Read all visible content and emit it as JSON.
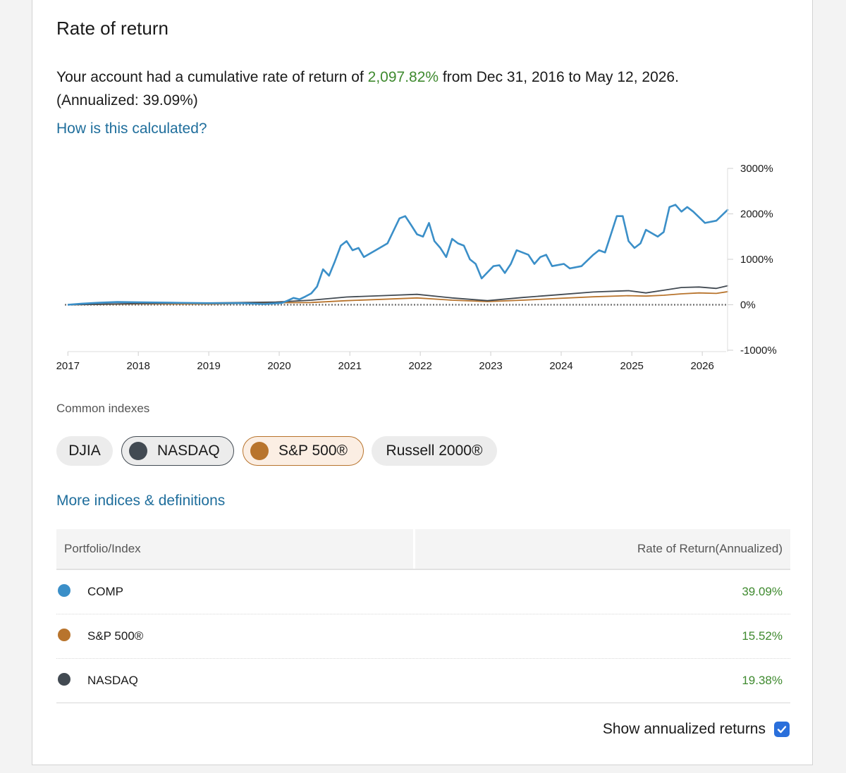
{
  "title": "Rate of return",
  "summary": {
    "prefix": "Your account had a cumulative rate of return of ",
    "value": "2,097.82%",
    "middle": " from Dec 31, 2016 to May 12, 2026.",
    "annualized": "(Annualized: 39.09%)"
  },
  "links": {
    "calculated": "How is this calculated?",
    "more_indices": "More indices & definitions"
  },
  "chart_data": {
    "type": "line",
    "x_start": "2016-12-31",
    "x_end": "2026-05-12",
    "xticks": [
      "2017",
      "2018",
      "2019",
      "2020",
      "2021",
      "2022",
      "2023",
      "2024",
      "2025",
      "2026"
    ],
    "yticks": [
      "3000%",
      "2000%",
      "1000%",
      "0%",
      "-1000%"
    ],
    "ylim": [
      -1000,
      3000
    ],
    "zero_line": "dotted",
    "series": [
      {
        "name": "COMP",
        "color": "#3b8fc8",
        "points": [
          [
            "2016-12-31",
            0
          ],
          [
            "2017-03",
            25
          ],
          [
            "2017-06",
            45
          ],
          [
            "2017-09",
            60
          ],
          [
            "2018-01",
            55
          ],
          [
            "2018-06",
            45
          ],
          [
            "2018-12",
            35
          ],
          [
            "2019-06",
            35
          ],
          [
            "2019-10",
            15
          ],
          [
            "2020-01",
            40
          ],
          [
            "2020-02",
            95
          ],
          [
            "2020-03",
            150
          ],
          [
            "2020-04",
            120
          ],
          [
            "2020-05",
            180
          ],
          [
            "2020-06",
            250
          ],
          [
            "2020-07",
            400
          ],
          [
            "2020-08",
            780
          ],
          [
            "2020-09",
            640
          ],
          [
            "2020-10",
            950
          ],
          [
            "2020-11",
            1300
          ],
          [
            "2020-12",
            1400
          ],
          [
            "2021-01",
            1200
          ],
          [
            "2021-02",
            1250
          ],
          [
            "2021-03",
            1050
          ],
          [
            "2021-05",
            1200
          ],
          [
            "2021-07",
            1350
          ],
          [
            "2021-09",
            1900
          ],
          [
            "2021-10",
            1950
          ],
          [
            "2021-11",
            1750
          ],
          [
            "2021-12",
            1550
          ],
          [
            "2022-01",
            1500
          ],
          [
            "2022-02",
            1800
          ],
          [
            "2022-03",
            1400
          ],
          [
            "2022-04",
            1250
          ],
          [
            "2022-05",
            1050
          ],
          [
            "2022-06",
            1450
          ],
          [
            "2022-07",
            1350
          ],
          [
            "2022-08",
            1300
          ],
          [
            "2022-09",
            1000
          ],
          [
            "2022-10",
            900
          ],
          [
            "2022-11",
            580
          ],
          [
            "2023-01",
            850
          ],
          [
            "2023-02",
            870
          ],
          [
            "2023-03",
            700
          ],
          [
            "2023-04",
            900
          ],
          [
            "2023-05",
            1200
          ],
          [
            "2023-07",
            1100
          ],
          [
            "2023-08",
            900
          ],
          [
            "2023-09",
            1050
          ],
          [
            "2023-10",
            1100
          ],
          [
            "2023-11",
            850
          ],
          [
            "2024-01",
            900
          ],
          [
            "2024-02",
            800
          ],
          [
            "2024-04",
            850
          ],
          [
            "2024-06",
            1100
          ],
          [
            "2024-07",
            1200
          ],
          [
            "2024-08",
            1150
          ],
          [
            "2024-09",
            1550
          ],
          [
            "2024-10",
            1950
          ],
          [
            "2024-11",
            1950
          ],
          [
            "2024-12",
            1400
          ],
          [
            "2025-01",
            1250
          ],
          [
            "2025-02",
            1350
          ],
          [
            "2025-03",
            1650
          ],
          [
            "2025-05",
            1500
          ],
          [
            "2025-06",
            1600
          ],
          [
            "2025-07",
            2150
          ],
          [
            "2025-08",
            2200
          ],
          [
            "2025-09",
            2050
          ],
          [
            "2025-10",
            2150
          ],
          [
            "2025-11",
            2050
          ],
          [
            "2026-01",
            1800
          ],
          [
            "2026-03",
            1850
          ],
          [
            "2026-05",
            2100
          ]
        ]
      },
      {
        "name": "NASDAQ",
        "color": "#424a52",
        "points": [
          [
            "2016-12-31",
            0
          ],
          [
            "2018-01",
            30
          ],
          [
            "2019-01",
            40
          ],
          [
            "2019-12",
            60
          ],
          [
            "2020-06",
            100
          ],
          [
            "2020-12",
            170
          ],
          [
            "2021-06",
            200
          ],
          [
            "2021-12",
            230
          ],
          [
            "2022-06",
            150
          ],
          [
            "2022-12",
            90
          ],
          [
            "2023-06",
            160
          ],
          [
            "2023-12",
            220
          ],
          [
            "2024-06",
            280
          ],
          [
            "2024-12",
            310
          ],
          [
            "2025-03",
            260
          ],
          [
            "2025-06",
            320
          ],
          [
            "2025-09",
            380
          ],
          [
            "2025-12",
            390
          ],
          [
            "2026-03",
            360
          ],
          [
            "2026-05",
            420
          ]
        ]
      },
      {
        "name": "S&P 500®",
        "color": "#b8742d",
        "points": [
          [
            "2016-12-31",
            0
          ],
          [
            "2018-01",
            20
          ],
          [
            "2019-01",
            15
          ],
          [
            "2019-12",
            45
          ],
          [
            "2020-06",
            50
          ],
          [
            "2020-12",
            90
          ],
          [
            "2021-06",
            120
          ],
          [
            "2021-12",
            150
          ],
          [
            "2022-06",
            100
          ],
          [
            "2022-12",
            70
          ],
          [
            "2023-06",
            100
          ],
          [
            "2023-12",
            140
          ],
          [
            "2024-06",
            175
          ],
          [
            "2024-12",
            200
          ],
          [
            "2025-03",
            190
          ],
          [
            "2025-06",
            210
          ],
          [
            "2025-09",
            240
          ],
          [
            "2025-12",
            260
          ],
          [
            "2026-03",
            250
          ],
          [
            "2026-05",
            290
          ]
        ]
      }
    ]
  },
  "common_indexes": {
    "label": "Common indexes",
    "chips": [
      {
        "label": "DJIA",
        "selected": false
      },
      {
        "label": "NASDAQ",
        "selected": true,
        "color": "#424a52"
      },
      {
        "label": "S&P 500®",
        "selected": true,
        "color": "#b8742d"
      },
      {
        "label": "Russell 2000®",
        "selected": false
      }
    ]
  },
  "table": {
    "headers": [
      "Portfolio/Index",
      "Rate of Return(Annualized)"
    ],
    "rows": [
      {
        "name": "COMP",
        "value": "39.09%",
        "color": "#3b8fc8"
      },
      {
        "name": "S&P 500®",
        "value": "15.52%",
        "color": "#b8742d"
      },
      {
        "name": "NASDAQ",
        "value": "19.38%",
        "color": "#424a52"
      }
    ]
  },
  "annualized_toggle": {
    "label": "Show annualized returns",
    "checked": true
  }
}
